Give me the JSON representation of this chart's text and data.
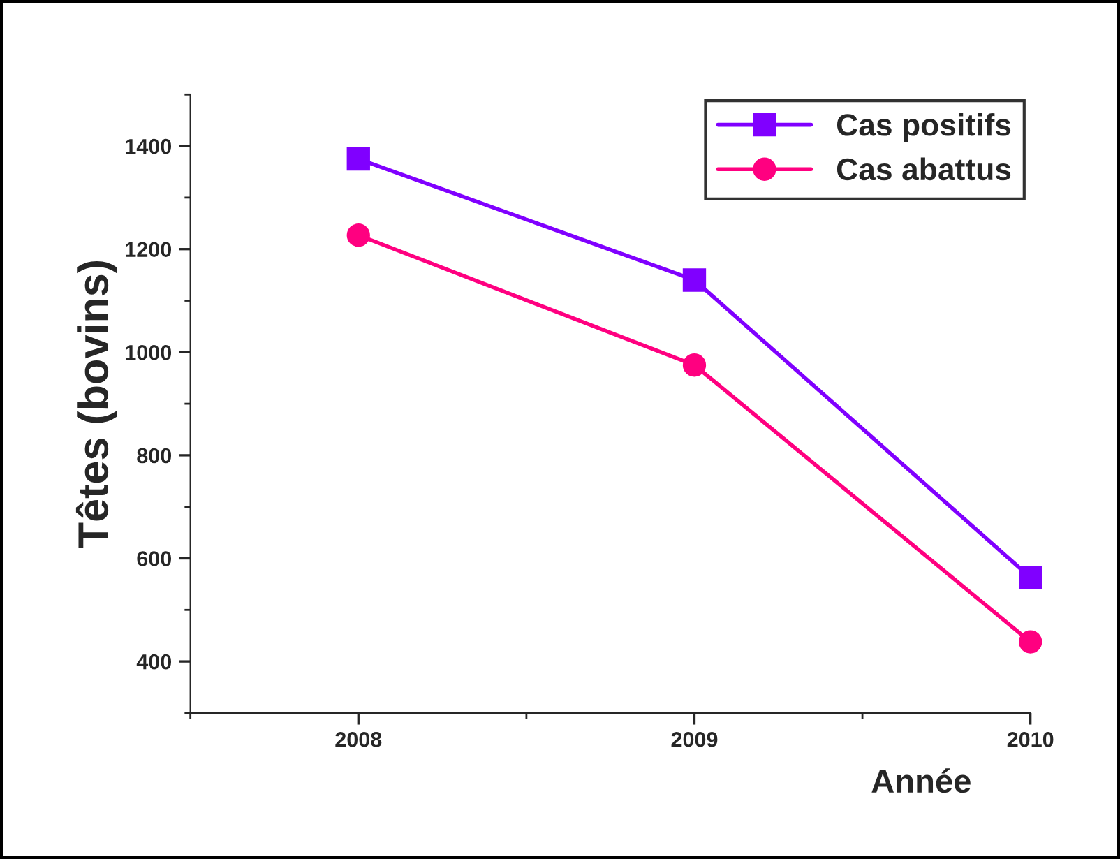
{
  "chart_data": {
    "type": "line",
    "xlabel": "Année",
    "ylabel": "Têtes (bovins)",
    "x": [
      2008,
      2009,
      2010
    ],
    "series": [
      {
        "name": "Cas positifs",
        "color": "#8000ff",
        "values": [
          1375,
          1140,
          563
        ],
        "marker": "square"
      },
      {
        "name": "Cas abattus",
        "color": "#ff0080",
        "values": [
          1227,
          975,
          438
        ],
        "marker": "circle"
      }
    ],
    "xlim": [
      2007.5,
      2010
    ],
    "xticks": [
      2008,
      2009,
      2010
    ],
    "ylim": [
      300,
      1500
    ],
    "yticks": [
      400,
      600,
      800,
      1000,
      1200,
      1400
    ],
    "grid": false,
    "legend": "top right",
    "line_style": "solid"
  }
}
